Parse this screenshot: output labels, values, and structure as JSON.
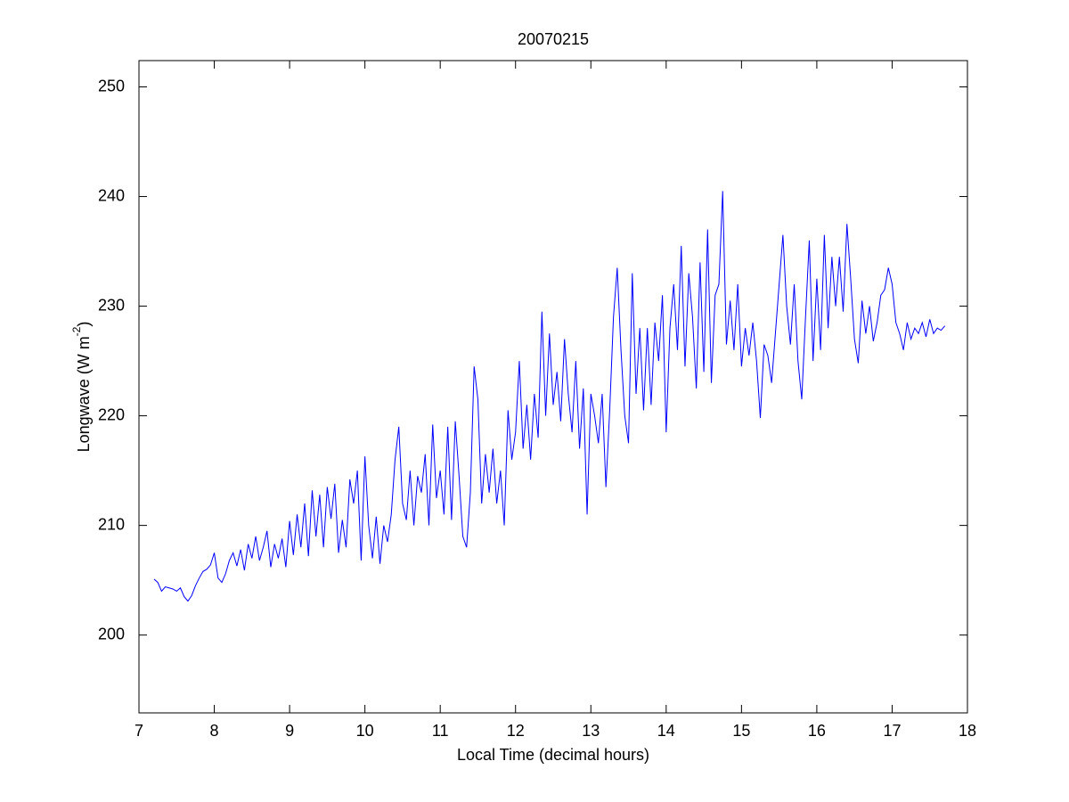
{
  "chart_data": {
    "type": "line",
    "title": "20070215",
    "x_label": "Local Time (decimal hours)",
    "y_label": {
      "text": "Longwave (W m",
      "superscript": "-2",
      "suffix": ")"
    },
    "xlim": [
      7,
      18
    ],
    "xticks": [
      7,
      8,
      9,
      10,
      11,
      12,
      13,
      14,
      15,
      16,
      17,
      18
    ],
    "ylim": [
      192.9,
      252.4
    ],
    "yticks": [
      200,
      210,
      220,
      230,
      240,
      250
    ],
    "series": [
      {
        "color": "#0000ff",
        "x": [
          7.2,
          7.25,
          7.3,
          7.35,
          7.4,
          7.45,
          7.5,
          7.55,
          7.6,
          7.65,
          7.7,
          7.75,
          7.8,
          7.85,
          7.9,
          7.95,
          8.0,
          8.05,
          8.1,
          8.15,
          8.2,
          8.25,
          8.3,
          8.35,
          8.4,
          8.45,
          8.5,
          8.55,
          8.6,
          8.65,
          8.7,
          8.75,
          8.8,
          8.85,
          8.9,
          8.95,
          9.0,
          9.05,
          9.1,
          9.15,
          9.2,
          9.25,
          9.3,
          9.35,
          9.4,
          9.45,
          9.5,
          9.55,
          9.6,
          9.65,
          9.7,
          9.75,
          9.8,
          9.85,
          9.9,
          9.95,
          10.0,
          10.05,
          10.1,
          10.15,
          10.2,
          10.25,
          10.3,
          10.35,
          10.4,
          10.45,
          10.5,
          10.55,
          10.6,
          10.65,
          10.7,
          10.75,
          10.8,
          10.85,
          10.9,
          10.95,
          11.0,
          11.05,
          11.1,
          11.15,
          11.2,
          11.25,
          11.3,
          11.35,
          11.4,
          11.45,
          11.5,
          11.55,
          11.6,
          11.65,
          11.7,
          11.75,
          11.8,
          11.85,
          11.9,
          11.95,
          12.0,
          12.05,
          12.1,
          12.15,
          12.2,
          12.25,
          12.3,
          12.35,
          12.4,
          12.45,
          12.5,
          12.55,
          12.6,
          12.65,
          12.7,
          12.75,
          12.8,
          12.85,
          12.9,
          12.95,
          13.0,
          13.05,
          13.1,
          13.15,
          13.2,
          13.25,
          13.3,
          13.35,
          13.4,
          13.45,
          13.5,
          13.55,
          13.6,
          13.65,
          13.7,
          13.75,
          13.8,
          13.85,
          13.9,
          13.95,
          14.0,
          14.05,
          14.1,
          14.15,
          14.2,
          14.25,
          14.3,
          14.35,
          14.4,
          14.45,
          14.5,
          14.55,
          14.6,
          14.65,
          14.7,
          14.75,
          14.8,
          14.85,
          14.9,
          14.95,
          15.0,
          15.05,
          15.1,
          15.15,
          15.2,
          15.25,
          15.3,
          15.35,
          15.4,
          15.45,
          15.5,
          15.55,
          15.6,
          15.65,
          15.7,
          15.75,
          15.8,
          15.85,
          15.9,
          15.95,
          16.0,
          16.05,
          16.1,
          16.15,
          16.2,
          16.25,
          16.3,
          16.35,
          16.4,
          16.45,
          16.5,
          16.55,
          16.6,
          16.65,
          16.7,
          16.75,
          16.8,
          16.85,
          16.9,
          16.95,
          17.0,
          17.05,
          17.1,
          17.15,
          17.2,
          17.25,
          17.3,
          17.35,
          17.4,
          17.45,
          17.5,
          17.55,
          17.6,
          17.65,
          17.7
        ],
        "values": [
          205.1,
          204.8,
          204.0,
          204.4,
          204.3,
          204.2,
          204.0,
          204.3,
          203.5,
          203.1,
          203.6,
          204.5,
          205.2,
          205.8,
          206.0,
          206.4,
          207.5,
          205.2,
          204.8,
          205.6,
          206.8,
          207.5,
          206.3,
          207.8,
          205.9,
          208.3,
          207.0,
          209.0,
          206.8,
          208.0,
          209.5,
          206.2,
          208.3,
          207.0,
          208.8,
          206.2,
          210.4,
          207.3,
          211.0,
          208.0,
          212.0,
          207.2,
          213.2,
          209.0,
          212.8,
          208.0,
          213.5,
          210.6,
          213.8,
          207.5,
          210.5,
          208.0,
          214.2,
          212.0,
          215.0,
          206.8,
          216.3,
          210.0,
          207.0,
          210.8,
          206.5,
          210.0,
          208.5,
          211.0,
          216.0,
          219.0,
          212.0,
          210.5,
          215.0,
          210.0,
          214.5,
          213.0,
          216.5,
          210.0,
          219.2,
          212.5,
          215.0,
          211.0,
          219.0,
          210.5,
          219.5,
          214.5,
          209.0,
          208.0,
          213.0,
          224.5,
          221.5,
          212.0,
          216.5,
          213.0,
          217.0,
          212.0,
          215.0,
          210.0,
          220.5,
          216.0,
          218.5,
          225.0,
          217.0,
          221.0,
          216.0,
          222.0,
          218.0,
          229.5,
          220.0,
          227.5,
          221.0,
          224.0,
          219.5,
          227.0,
          222.0,
          218.5,
          225.0,
          217.0,
          222.5,
          211.0,
          222.0,
          220.0,
          217.5,
          222.0,
          213.5,
          220.5,
          229.0,
          233.5,
          226.0,
          220.0,
          217.5,
          233.0,
          222.0,
          228.0,
          220.5,
          228.0,
          221.0,
          228.5,
          225.0,
          231.0,
          218.5,
          228.0,
          232.0,
          226.0,
          235.5,
          224.5,
          233.0,
          229.0,
          222.5,
          234.0,
          224.0,
          237.0,
          223.0,
          231.0,
          232.0,
          240.5,
          226.5,
          230.5,
          226.0,
          232.0,
          224.5,
          228.0,
          225.5,
          228.5,
          225.0,
          219.8,
          226.5,
          225.5,
          223.0,
          227.5,
          232.0,
          236.5,
          230.0,
          226.5,
          232.0,
          225.0,
          221.5,
          229.0,
          236.0,
          225.0,
          232.5,
          226.0,
          236.5,
          228.0,
          234.5,
          230.0,
          234.5,
          229.5,
          237.5,
          232.5,
          227.0,
          224.8,
          230.5,
          227.5,
          230.0,
          226.8,
          228.5,
          231.0,
          231.5,
          233.5,
          232.0,
          228.5,
          227.5,
          226.0,
          228.5,
          227.0,
          228.0,
          227.5,
          228.5,
          227.2,
          228.8,
          227.5,
          228.0,
          227.8,
          228.2
        ]
      }
    ]
  }
}
